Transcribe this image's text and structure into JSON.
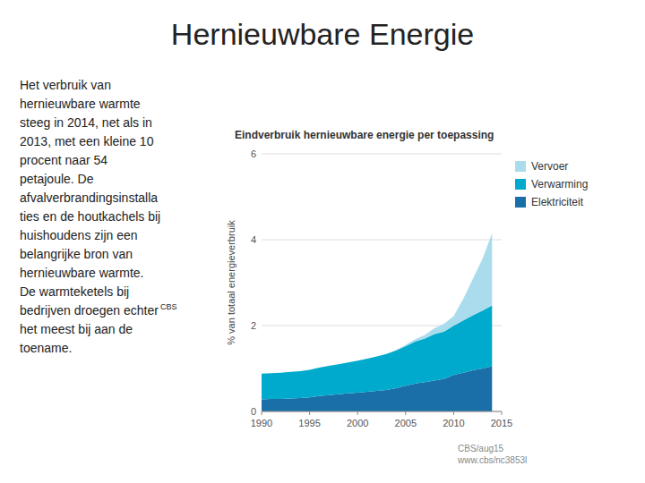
{
  "title": "Hernieuwbare Energie",
  "body_text": [
    "Het verbruik van",
    "hernieuwbare warmte",
    "steeg in 2014, net als in",
    "2013, met een kleine 10",
    "procent naar 54",
    "petajoule. De",
    "afvalverbrandingsinstalla",
    "ties en de houtkachels bij",
    "huishoudens zijn een",
    "belangrijke bron van",
    "hernieuwbare warmte.",
    "De warmteketels bij",
    "bedrijven droegen echter"
  ],
  "superscript": "CBS",
  "body_text2": [
    "het meest bij aan de",
    "toename."
  ],
  "source": [
    "CBS/aug15",
    "www.cbs/nc3853l"
  ],
  "chart_data": {
    "type": "area",
    "stacked": true,
    "title": "Eindverbruik hernieuwbare energie per toepassing",
    "y_label": "% van totaal energieverbruik",
    "x": [
      1990,
      1991,
      1992,
      1993,
      1994,
      1995,
      1996,
      1997,
      1998,
      1999,
      2000,
      2001,
      2002,
      2003,
      2004,
      2005,
      2006,
      2007,
      2008,
      2009,
      2010,
      2011,
      2012,
      2013,
      2014
    ],
    "series": [
      {
        "name": "Elektriciteit",
        "color": "#1B6FA8",
        "values": [
          0.28,
          0.29,
          0.29,
          0.3,
          0.31,
          0.33,
          0.36,
          0.38,
          0.4,
          0.42,
          0.44,
          0.46,
          0.48,
          0.5,
          0.54,
          0.6,
          0.65,
          0.68,
          0.72,
          0.76,
          0.85,
          0.9,
          0.96,
          1.0,
          1.05
        ]
      },
      {
        "name": "Verwarming",
        "color": "#00AACC",
        "values": [
          0.6,
          0.6,
          0.61,
          0.62,
          0.63,
          0.64,
          0.66,
          0.68,
          0.7,
          0.72,
          0.74,
          0.77,
          0.8,
          0.84,
          0.88,
          0.92,
          0.98,
          1.02,
          1.08,
          1.1,
          1.15,
          1.22,
          1.28,
          1.35,
          1.42
        ]
      },
      {
        "name": "Vervoer",
        "color": "#AADCEE",
        "values": [
          0.0,
          0.0,
          0.0,
          0.0,
          0.0,
          0.0,
          0.0,
          0.0,
          0.0,
          0.0,
          0.0,
          0.0,
          0.0,
          0.0,
          0.01,
          0.03,
          0.05,
          0.08,
          0.14,
          0.18,
          0.22,
          0.5,
          0.85,
          1.2,
          1.68
        ]
      }
    ],
    "xlim": [
      1990,
      2015
    ],
    "xticks": [
      1990,
      1995,
      2000,
      2005,
      2010,
      2015
    ],
    "ylim": [
      0,
      6
    ],
    "yticks": [
      0,
      2,
      4,
      6
    ],
    "grid": true,
    "legend": "right"
  }
}
